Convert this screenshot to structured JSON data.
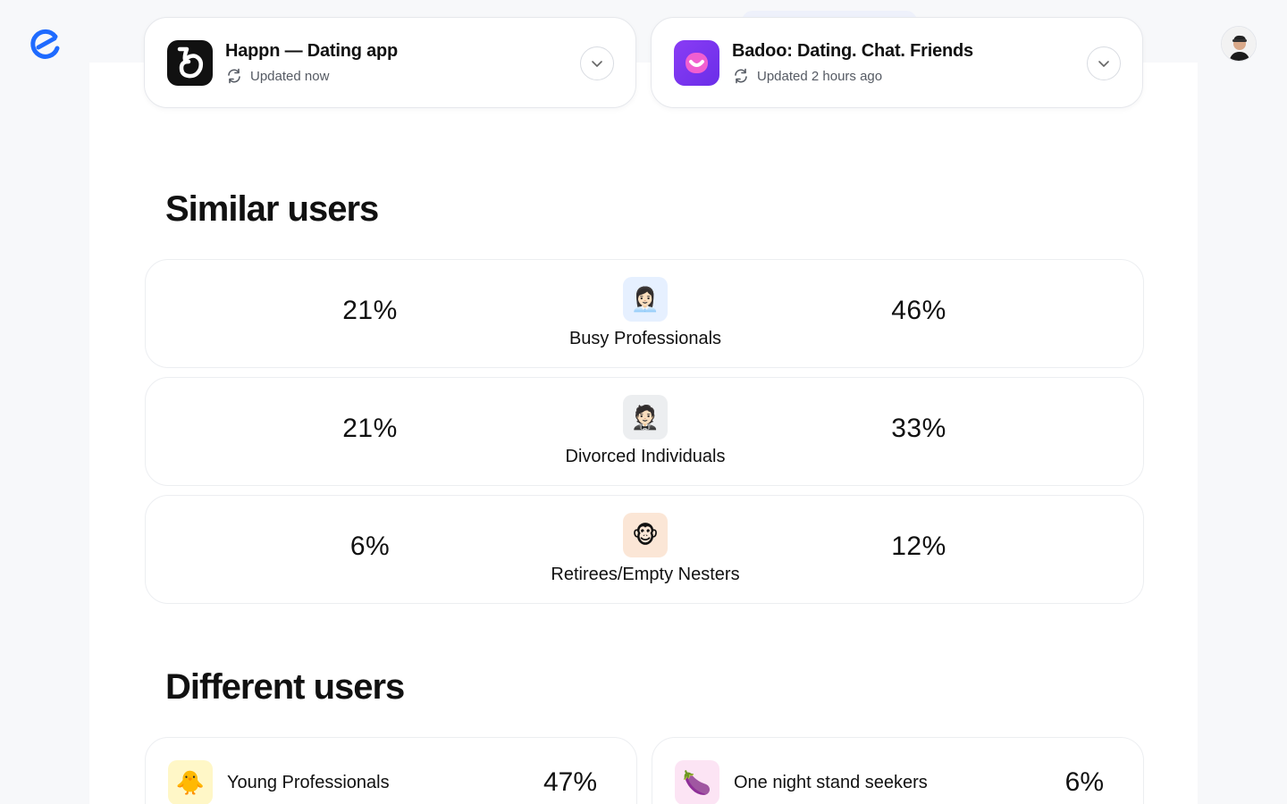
{
  "header": {
    "logo_icon": "ellipsis-brand-icon",
    "avatar_icon": "user-avatar"
  },
  "apps": [
    {
      "name": "Happn — Dating app",
      "status": "Updated now",
      "icon": "happn-app-icon",
      "color": "#111111"
    },
    {
      "name": "Badoo: Dating. Chat. Friends",
      "status": "Updated 2 hours ago",
      "icon": "badoo-app-icon",
      "color": "#7a3cf0"
    }
  ],
  "similar": {
    "title": "Similar users",
    "rows": [
      {
        "left": "21%",
        "right": "46%",
        "label": "Busy Professionals",
        "emoji": "👩🏻‍💼",
        "bg": "#e6f0ff"
      },
      {
        "left": "21%",
        "right": "33%",
        "label": "Divorced Individuals",
        "emoji": "🤵🏻",
        "bg": "#eceef0"
      },
      {
        "left": "6%",
        "right": "12%",
        "label": "Retirees/Empty Nesters",
        "emoji": "🐵",
        "bg": "#fbe6d6"
      }
    ]
  },
  "different": {
    "title": "Different users",
    "cards": [
      {
        "label": "Young Professionals",
        "value": "47%",
        "emoji": "🐥",
        "bg": "#fff7c7"
      },
      {
        "label": "One night stand seekers",
        "value": "6%",
        "emoji": "🍆",
        "bg": "#fce4f4"
      }
    ]
  }
}
